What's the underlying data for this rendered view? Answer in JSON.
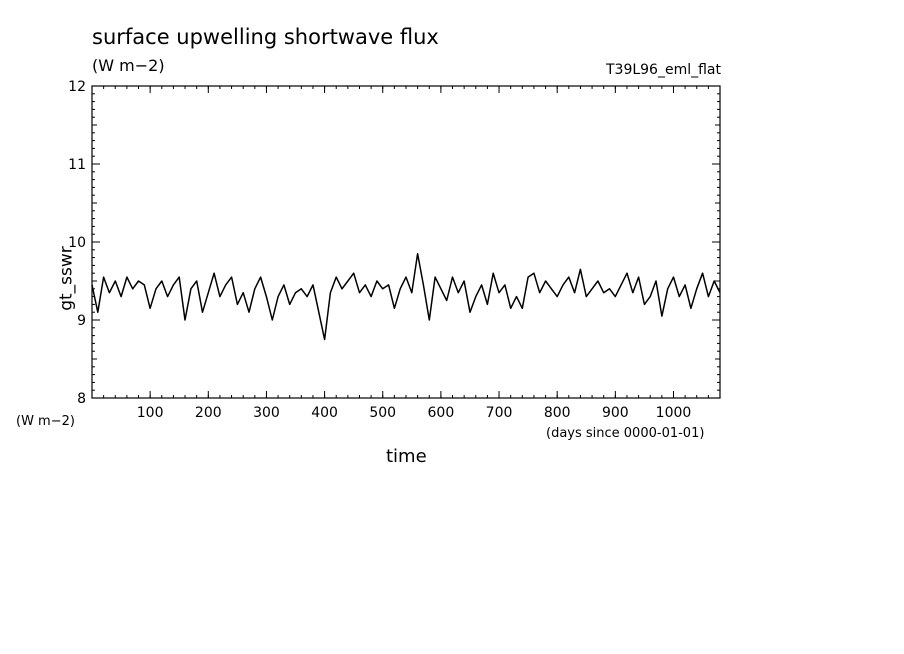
{
  "chart_data": {
    "type": "line",
    "title": "surface upwelling shortwave flux",
    "subtitle": "(W m−2)",
    "annotation": "T39L96_eml_flat",
    "ylabel": "gt_sswr",
    "yunits": "(W m−2)",
    "xlabel": "time",
    "xunits": "(days since 0000-01-01)",
    "xlim": [
      0,
      1080
    ],
    "ylim": [
      8,
      12
    ],
    "xticks": [
      100,
      200,
      300,
      400,
      500,
      600,
      700,
      800,
      900,
      1000
    ],
    "yticks": [
      8,
      9,
      10,
      11,
      12
    ],
    "series": [
      {
        "x": [
          0,
          10,
          20,
          30,
          40,
          50,
          60,
          70,
          80,
          90,
          100,
          110,
          120,
          130,
          140,
          150,
          160,
          170,
          180,
          190,
          200,
          210,
          220,
          230,
          240,
          250,
          260,
          270,
          280,
          290,
          300,
          310,
          320,
          330,
          340,
          350,
          360,
          370,
          380,
          390,
          400,
          410,
          420,
          430,
          440,
          450,
          460,
          470,
          480,
          490,
          500,
          510,
          520,
          530,
          540,
          550,
          560,
          570,
          580,
          590,
          600,
          610,
          620,
          630,
          640,
          650,
          660,
          670,
          680,
          690,
          700,
          710,
          720,
          730,
          740,
          750,
          760,
          770,
          780,
          790,
          800,
          810,
          820,
          830,
          840,
          850,
          860,
          870,
          880,
          890,
          900,
          910,
          920,
          930,
          940,
          950,
          960,
          970,
          980,
          990,
          1000,
          1010,
          1020,
          1030,
          1040,
          1050,
          1060,
          1070,
          1080
        ],
        "values": [
          9.45,
          9.1,
          9.55,
          9.35,
          9.5,
          9.3,
          9.55,
          9.4,
          9.5,
          9.45,
          9.15,
          9.4,
          9.5,
          9.3,
          9.45,
          9.55,
          9.0,
          9.4,
          9.5,
          9.1,
          9.35,
          9.6,
          9.3,
          9.45,
          9.55,
          9.2,
          9.35,
          9.1,
          9.4,
          9.55,
          9.3,
          9.0,
          9.3,
          9.45,
          9.2,
          9.35,
          9.4,
          9.3,
          9.45,
          9.1,
          8.75,
          9.35,
          9.55,
          9.4,
          9.5,
          9.6,
          9.35,
          9.45,
          9.3,
          9.5,
          9.4,
          9.45,
          9.15,
          9.4,
          9.55,
          9.35,
          9.85,
          9.45,
          9.0,
          9.55,
          9.4,
          9.25,
          9.55,
          9.35,
          9.5,
          9.1,
          9.3,
          9.45,
          9.2,
          9.6,
          9.35,
          9.45,
          9.15,
          9.3,
          9.15,
          9.55,
          9.6,
          9.35,
          9.5,
          9.4,
          9.3,
          9.45,
          9.55,
          9.35,
          9.65,
          9.3,
          9.4,
          9.5,
          9.35,
          9.4,
          9.3,
          9.45,
          9.6,
          9.35,
          9.55,
          9.2,
          9.3,
          9.5,
          9.05,
          9.4,
          9.55,
          9.3,
          9.45,
          9.15,
          9.4,
          9.6,
          9.3,
          9.5,
          9.35
        ]
      }
    ]
  }
}
